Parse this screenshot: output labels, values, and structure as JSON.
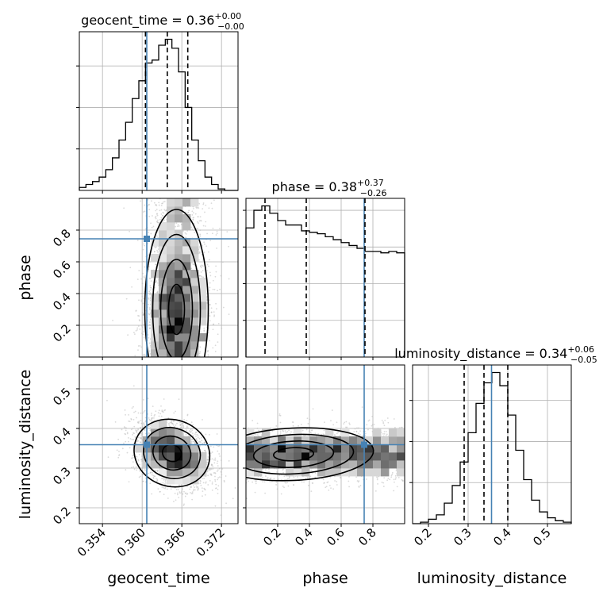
{
  "chart_data": {
    "type": "corner",
    "parameters": [
      {
        "name": "geocent_time",
        "axis_label": "geocent_time",
        "range": [
          0.3505,
          0.3745
        ],
        "ticks": [
          0.354,
          0.36,
          0.366,
          0.372
        ],
        "tick_labels": [
          "0.354",
          "0.360",
          "0.366",
          "0.372"
        ],
        "title_text": "geocent_time = 0.36",
        "title_sup": "+0.00",
        "title_sub": "−0.00",
        "median": 0.3638,
        "lower": 0.3605,
        "upper": 0.3669,
        "truth": 0.3607,
        "histogram": [
          2,
          4,
          6,
          9,
          14,
          22,
          34,
          46,
          62,
          74,
          86,
          88,
          98,
          102,
          96,
          80,
          56,
          34,
          20,
          9,
          4,
          1,
          0,
          0
        ]
      },
      {
        "name": "phase",
        "axis_label": "phase",
        "range": [
          0.0,
          1.0
        ],
        "ticks": [
          0.2,
          0.4,
          0.6,
          0.8
        ],
        "tick_labels": [
          "0.2",
          "0.4",
          "0.6",
          "0.8"
        ],
        "title_text": "phase = 0.38",
        "title_sup": "+0.37",
        "title_sub": "−0.26",
        "median": 0.38,
        "lower": 0.12,
        "upper": 0.75,
        "truth": 0.745,
        "histogram": [
          88,
          100,
          103,
          98,
          93,
          90,
          90,
          86,
          85,
          84,
          82,
          80,
          78,
          76,
          74,
          72,
          72,
          71,
          72,
          71
        ]
      },
      {
        "name": "luminosity_distance",
        "axis_label": "luminosity_distance",
        "range": [
          0.16,
          0.56
        ],
        "ticks": [
          0.2,
          0.3,
          0.4,
          0.5
        ],
        "tick_labels": [
          "0.2",
          "0.3",
          "0.4",
          "0.5"
        ],
        "title_text": "luminosity_distance = 0.34",
        "title_sup": "+0.06",
        "title_sub": "−0.05",
        "median": 0.34,
        "lower": 0.29,
        "upper": 0.4,
        "truth": 0.359,
        "histogram": [
          0,
          1,
          3,
          6,
          14,
          26,
          42,
          62,
          82,
          96,
          103,
          94,
          74,
          50,
          30,
          16,
          8,
          4,
          2,
          1
        ]
      }
    ],
    "marginal_y_ticks": [
      [
        28,
        56,
        84
      ],
      [
        25,
        50,
        75,
        100
      ],
      [
        28,
        56,
        84
      ]
    ],
    "pairs": [
      {
        "x": "geocent_time",
        "y": "phase",
        "mean": [
          0.3652,
          0.3
        ],
        "sd": [
          0.0024,
          0.21
        ],
        "corr": 0.0,
        "y_extent": [
          0.0,
          1.0
        ]
      },
      {
        "x": "geocent_time",
        "y": "luminosity_distance",
        "mean": [
          0.3645,
          0.338
        ],
        "sd": [
          0.0029,
          0.042
        ],
        "corr": -0.35
      },
      {
        "x": "phase",
        "y": "luminosity_distance",
        "mean": [
          0.3,
          0.335
        ],
        "sd": [
          0.28,
          0.033
        ],
        "corr": 0.05,
        "x_extent": [
          0.0,
          1.0
        ]
      }
    ],
    "grid": true,
    "colors": {
      "truth": "#4682b4",
      "line": "#000000",
      "points": "#bbbbbb",
      "grid": "#b0b0b0"
    }
  }
}
